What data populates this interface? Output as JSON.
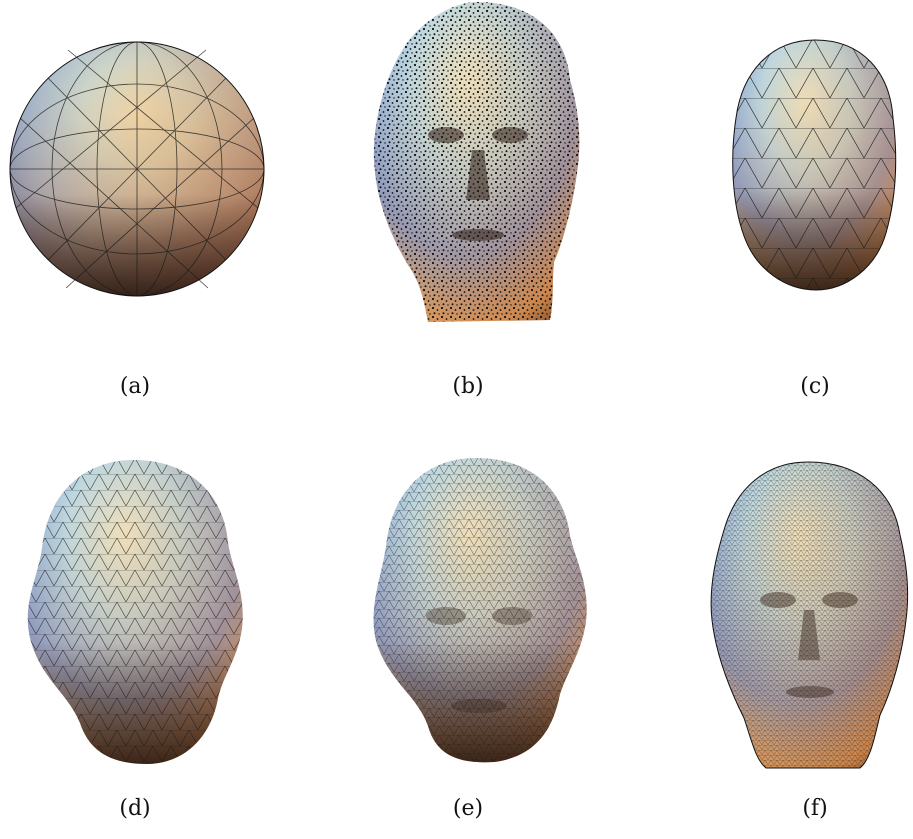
{
  "figure": {
    "panels": [
      {
        "id": "a",
        "caption": "(a)"
      },
      {
        "id": "b",
        "caption": "(b)"
      },
      {
        "id": "c",
        "caption": "(c)"
      },
      {
        "id": "d",
        "caption": "(d)"
      },
      {
        "id": "e",
        "caption": "(e)"
      },
      {
        "id": "f",
        "caption": "(f)"
      }
    ],
    "colors": {
      "highlight": "#f5f3d8",
      "cyan": "#bfe6ee",
      "blue": "#5d7fc4",
      "orange": "#e59a4a",
      "dark": "#3a2418",
      "wire": "#1a1a1a"
    }
  }
}
